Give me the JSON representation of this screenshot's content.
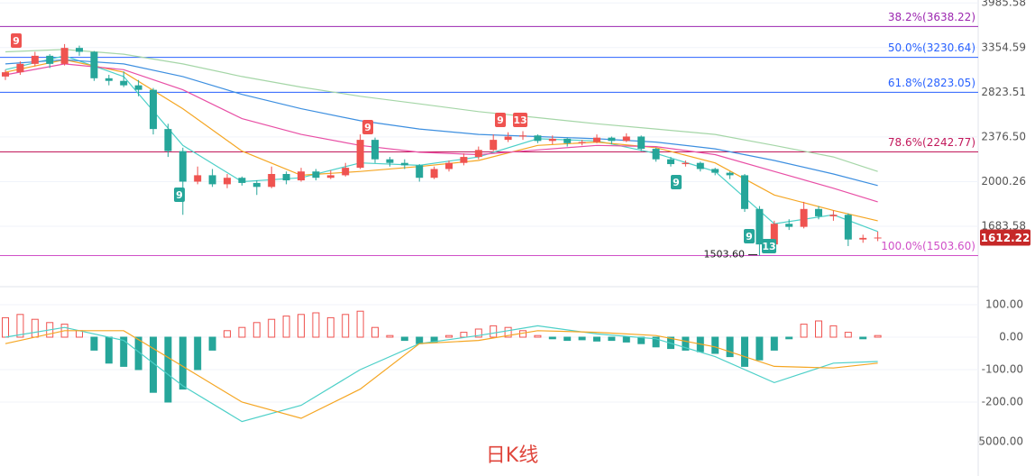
{
  "chart_data": {
    "type": "candlestick",
    "log_scale": true,
    "grid": true,
    "up_color": "#ef5350",
    "down_color": "#26a69a",
    "ylim": [
      1420,
      4030
    ],
    "yticks": [
      3985.58,
      3354.59,
      2823.51,
      {
        "value": 2376.5,
        "label": "2376.50"
      },
      2000.26,
      1683.58
    ],
    "ohlc": [
      [
        3000,
        3080,
        2960,
        3050
      ],
      [
        3050,
        3180,
        3020,
        3150
      ],
      [
        3150,
        3300,
        3120,
        3250
      ],
      [
        3250,
        3270,
        3100,
        3150
      ],
      [
        3150,
        3400,
        3130,
        3350
      ],
      [
        3350,
        3380,
        3250,
        3300
      ],
      [
        3300,
        3310,
        2950,
        2980
      ],
      [
        2980,
        3020,
        2900,
        2950
      ],
      [
        2950,
        3060,
        2880,
        2900
      ],
      [
        2900,
        2960,
        2780,
        2850
      ],
      [
        2850,
        2870,
        2400,
        2450
      ],
      [
        2450,
        2500,
        2200,
        2250
      ],
      [
        2250,
        2280,
        1760,
        2000
      ],
      [
        2000,
        2120,
        1980,
        2050
      ],
      [
        2050,
        2100,
        1960,
        1980
      ],
      [
        1980,
        2060,
        1950,
        2030
      ],
      [
        2030,
        2040,
        1970,
        1990
      ],
      [
        1990,
        2010,
        1900,
        1960
      ],
      [
        1960,
        2120,
        1950,
        2060
      ],
      [
        2060,
        2080,
        1980,
        2010
      ],
      [
        2010,
        2110,
        2000,
        2080
      ],
      [
        2080,
        2100,
        2010,
        2030
      ],
      [
        2030,
        2090,
        2020,
        2050
      ],
      [
        2050,
        2150,
        2040,
        2110
      ],
      [
        2110,
        2400,
        2100,
        2350
      ],
      [
        2350,
        2370,
        2150,
        2180
      ],
      [
        2180,
        2200,
        2120,
        2150
      ],
      [
        2150,
        2180,
        2100,
        2130
      ],
      [
        2130,
        2140,
        2000,
        2030
      ],
      [
        2030,
        2120,
        2020,
        2100
      ],
      [
        2100,
        2170,
        2080,
        2150
      ],
      [
        2150,
        2230,
        2130,
        2200
      ],
      [
        2200,
        2290,
        2180,
        2260
      ],
      [
        2260,
        2400,
        2250,
        2350
      ],
      [
        2350,
        2420,
        2330,
        2380
      ],
      [
        2380,
        2430,
        2350,
        2390
      ],
      [
        2390,
        2400,
        2320,
        2340
      ],
      [
        2340,
        2390,
        2310,
        2360
      ],
      [
        2360,
        2370,
        2290,
        2320
      ],
      [
        2320,
        2350,
        2300,
        2330
      ],
      [
        2330,
        2400,
        2320,
        2370
      ],
      [
        2370,
        2380,
        2310,
        2340
      ],
      [
        2340,
        2410,
        2330,
        2380
      ],
      [
        2380,
        2390,
        2250,
        2270
      ],
      [
        2270,
        2280,
        2160,
        2180
      ],
      [
        2180,
        2200,
        2120,
        2140
      ],
      [
        2140,
        2170,
        2120,
        2150
      ],
      [
        2150,
        2160,
        2080,
        2100
      ],
      [
        2100,
        2110,
        2050,
        2070
      ],
      [
        2070,
        2080,
        2020,
        2050
      ],
      [
        2050,
        2060,
        1780,
        1800
      ],
      [
        1800,
        1820,
        1503.6,
        1570
      ],
      [
        1570,
        1720,
        1550,
        1700
      ],
      [
        1700,
        1730,
        1660,
        1680
      ],
      [
        1680,
        1850,
        1670,
        1800
      ],
      [
        1800,
        1820,
        1730,
        1750
      ],
      [
        1750,
        1790,
        1720,
        1760
      ],
      [
        1760,
        1770,
        1560,
        1600
      ],
      [
        1600,
        1630,
        1580,
        1610
      ],
      [
        1610,
        1650,
        1590,
        1612.22
      ]
    ],
    "line_x": [
      0,
      4,
      8,
      12,
      16,
      20,
      24,
      28,
      32,
      36,
      40,
      44,
      48,
      52,
      56,
      59
    ],
    "lines": [
      {
        "color": "#4dd0c8",
        "values": [
          3080,
          3250,
          3000,
          2300,
          2000,
          2030,
          2150,
          2130,
          2200,
          2360,
          2340,
          2230,
          2080,
          1700,
          1760,
          1650
        ]
      },
      {
        "color": "#f5a623",
        "values": [
          3050,
          3200,
          3050,
          2650,
          2250,
          2050,
          2080,
          2120,
          2170,
          2300,
          2330,
          2280,
          2150,
          1900,
          1790,
          1720
        ]
      },
      {
        "color": "#e84fa5",
        "values": [
          3020,
          3150,
          3080,
          2850,
          2550,
          2400,
          2300,
          2240,
          2220,
          2260,
          2300,
          2290,
          2220,
          2080,
          1950,
          1850
        ]
      },
      {
        "color": "#3d8fe0",
        "values": [
          3150,
          3200,
          3150,
          3000,
          2800,
          2650,
          2530,
          2450,
          2400,
          2380,
          2360,
          2330,
          2270,
          2170,
          2060,
          1970
        ]
      },
      {
        "color": "#a5d6a7",
        "values": [
          3300,
          3330,
          3270,
          3150,
          3000,
          2880,
          2780,
          2700,
          2620,
          2560,
          2500,
          2450,
          2400,
          2300,
          2200,
          2080
        ]
      }
    ],
    "fib_levels": [
      {
        "value": 3638.22,
        "label": "38.2%(3638.22)",
        "color": "#9c27b0"
      },
      {
        "value": 3230.64,
        "label": "50.0%(3230.64)",
        "color": "#2962ff"
      },
      {
        "value": 2823.05,
        "label": "61.8%(2823.05)",
        "color": "#2962ff"
      },
      {
        "value": 2242.77,
        "label": "78.6%(2242.77)",
        "color": "#c2185b"
      },
      {
        "value": 1503.6,
        "label": "100.0%(1503.60)",
        "color": "#d050c8"
      }
    ],
    "low_marker": {
      "value": 1503.6,
      "label": "1503.60"
    },
    "last_price_color": "#c62828",
    "annotations": [
      {
        "text": "9",
        "color": "#ef5350"
      },
      {
        "text": "9",
        "color": "#ef5350"
      },
      {
        "text": "9",
        "color": "#ef5350"
      },
      {
        "text": "13",
        "color": "#ef5350"
      },
      {
        "text": "9",
        "color": "#26a69a"
      },
      {
        "text": "9",
        "color": "#26a69a"
      },
      {
        "text": "9",
        "color": "#26a69a"
      },
      {
        "text": "13",
        "color": "#26a69a"
      }
    ],
    "macd": {
      "ylim": [
        -300,
        150
      ],
      "yticks": [
        {
          "value": 100,
          "label": "100.00"
        },
        {
          "value": 0,
          "label": "0.00"
        },
        {
          "value": -100,
          "label": "-100.00"
        },
        {
          "value": -200,
          "label": "-200.00"
        }
      ],
      "hist": [
        60,
        70,
        55,
        45,
        40,
        20,
        -40,
        -80,
        -90,
        -100,
        -170,
        -200,
        -160,
        -100,
        -40,
        20,
        30,
        45,
        55,
        65,
        70,
        75,
        60,
        70,
        80,
        30,
        5,
        -10,
        -20,
        -15,
        5,
        15,
        25,
        35,
        30,
        20,
        5,
        -5,
        -10,
        -8,
        -12,
        -10,
        -15,
        -20,
        -30,
        -35,
        -40,
        -45,
        -50,
        -60,
        -90,
        -70,
        -40,
        -5,
        40,
        50,
        35,
        15,
        -5,
        5
      ],
      "lines": [
        {
          "color": "#4dd0c8",
          "values": [
            0,
            30,
            -10,
            -150,
            -260,
            -210,
            -100,
            -20,
            5,
            35,
            10,
            -5,
            -60,
            -140,
            -80,
            -75
          ]
        },
        {
          "color": "#f5a623",
          "values": [
            -20,
            20,
            20,
            -90,
            -200,
            -250,
            -160,
            -20,
            -10,
            20,
            15,
            5,
            -30,
            -90,
            -95,
            -80
          ]
        }
      ]
    },
    "volume_ticks": [
      {
        "value": 5000,
        "label": "5000.00"
      }
    ],
    "caption": "日K线"
  }
}
